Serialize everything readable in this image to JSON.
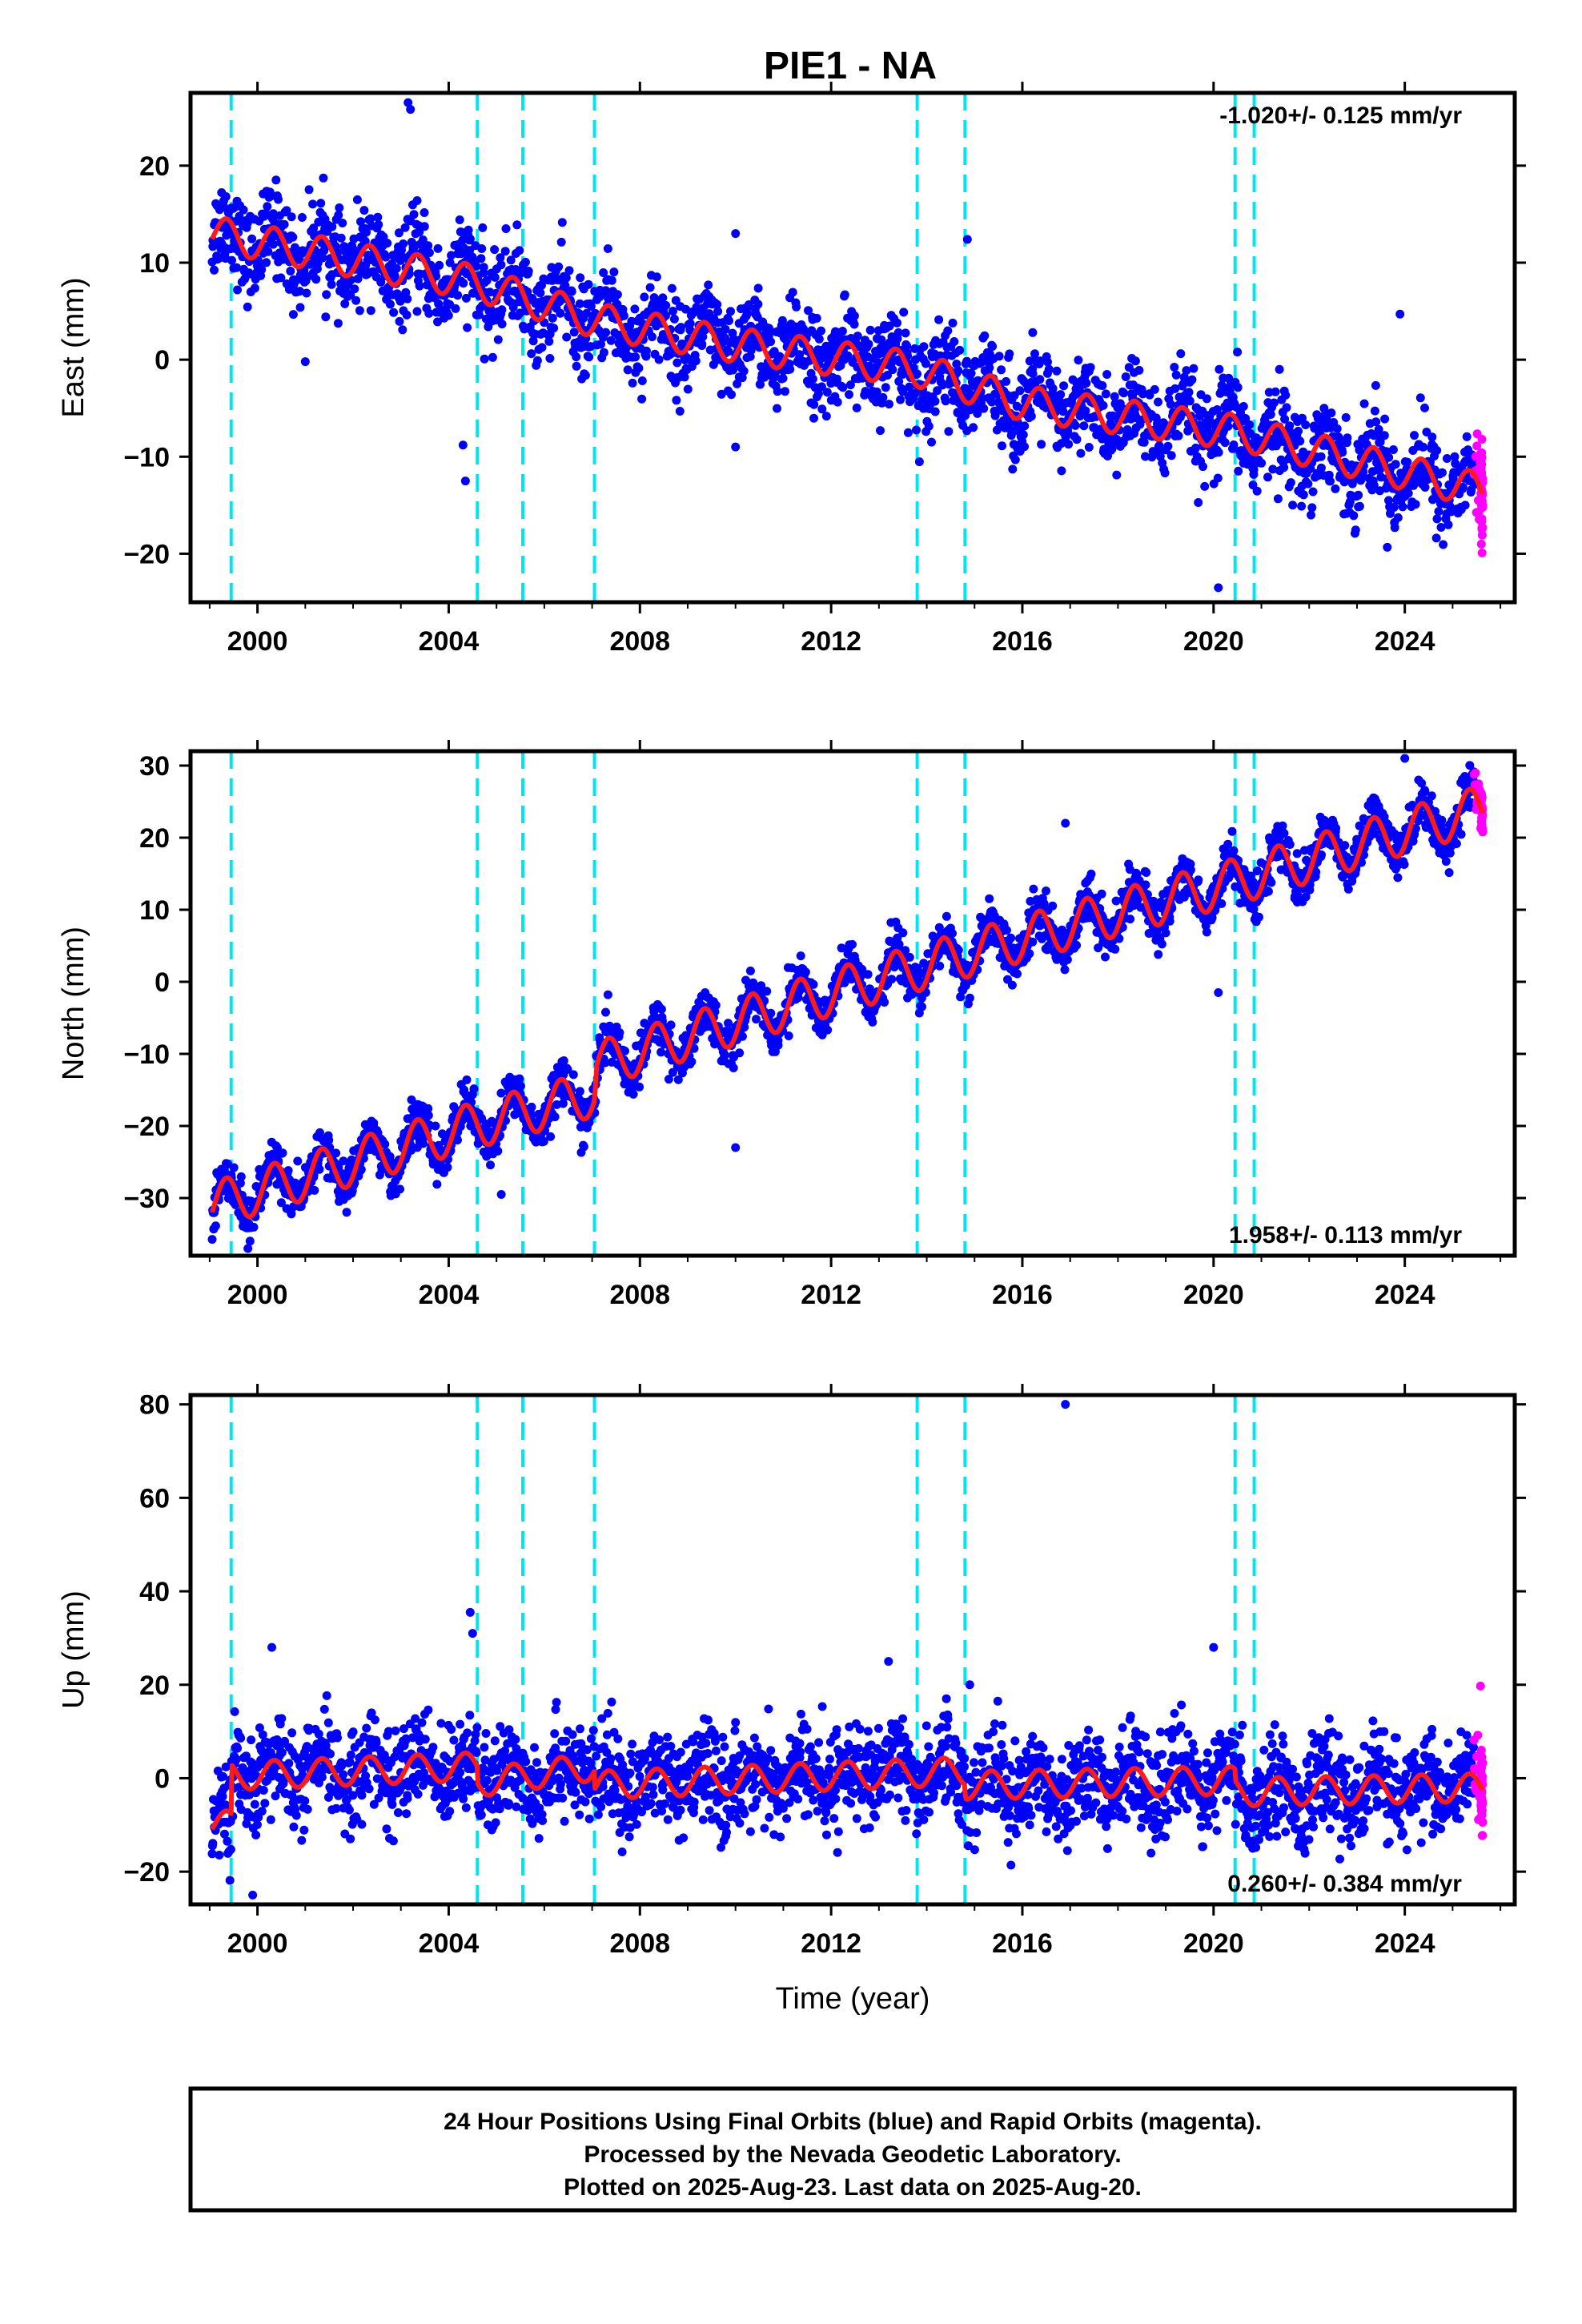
{
  "title": "PIE1 - NA",
  "colors": {
    "final": "#0000ff",
    "rapid": "#ff00ff",
    "model": "#ff1a1a",
    "offset": "#00e5f0"
  },
  "chart_data": [
    {
      "type": "scatter",
      "name": "east",
      "ylabel": "East (mm)",
      "rate_text": "-1.020+/- 0.125 mm/yr",
      "rate_position": "top-right",
      "xlim": [
        1998.6,
        2026.3
      ],
      "ylim": [
        -25,
        27.5
      ],
      "x_ticks": [
        2000,
        2004,
        2008,
        2012,
        2016,
        2020,
        2024
      ],
      "x_tick_labels": [
        "2000",
        "2004",
        "2008",
        "2012",
        "2016",
        "2020",
        "2024"
      ],
      "y_ticks": [
        -20,
        -10,
        0,
        10,
        20
      ],
      "y_tick_labels": [
        "−20",
        "−10",
        "0",
        "10",
        "20"
      ],
      "data_start": 1999.05,
      "data_end": 2025.63,
      "rapid_start": 2025.45,
      "trend_anchors": [
        [
          1999.05,
          13.0
        ],
        [
          2004.5,
          8.0
        ],
        [
          2007.1,
          4.0
        ],
        [
          2010,
          1.5
        ],
        [
          2013.8,
          -1.0
        ],
        [
          2016,
          -4.5
        ],
        [
          2020.5,
          -7.5
        ],
        [
          2025.6,
          -13.5
        ]
      ],
      "seasonal_amplitude": 1.8,
      "scatter_sd": 2.3,
      "outliers": [
        [
          2003.15,
          26.5
        ],
        [
          2003.2,
          25.8
        ],
        [
          2004.3,
          -8.8
        ],
        [
          2004.35,
          -12.5
        ],
        [
          2014.85,
          12.4
        ],
        [
          2010.0,
          13.0
        ],
        [
          2020.1,
          -23.5
        ],
        [
          2023.9,
          4.7
        ],
        [
          2001.0,
          -0.2
        ],
        [
          2014.1,
          -8.5
        ],
        [
          2010.0,
          -9.0
        ]
      ],
      "offsets": [
        1999.45,
        2004.6,
        2005.55,
        2007.05,
        2013.8,
        2014.8,
        2020.45,
        2020.85
      ]
    },
    {
      "type": "scatter",
      "name": "north",
      "ylabel": "North (mm)",
      "rate_text": "1.958+/- 0.113 mm/yr",
      "rate_position": "bottom-right",
      "xlim": [
        1998.6,
        2026.3
      ],
      "ylim": [
        -38,
        32
      ],
      "x_ticks": [
        2000,
        2004,
        2008,
        2012,
        2016,
        2020,
        2024
      ],
      "x_tick_labels": [
        "2000",
        "2004",
        "2008",
        "2012",
        "2016",
        "2020",
        "2024"
      ],
      "y_ticks": [
        -30,
        -20,
        -10,
        0,
        10,
        20,
        30
      ],
      "y_tick_labels": [
        "−30",
        "−20",
        "−10",
        "0",
        "10",
        "20",
        "30"
      ],
      "data_start": 1999.05,
      "data_end": 2025.63,
      "rapid_start": 2025.45,
      "trend_anchors": [
        [
          1999.05,
          -31.0
        ],
        [
          2004.5,
          -20.0
        ],
        [
          2007.05,
          -15.5
        ],
        [
          2007.1,
          -11.5
        ],
        [
          2012,
          -1.5
        ],
        [
          2016,
          6.0
        ],
        [
          2020.5,
          14.0
        ],
        [
          2025.6,
          24.0
        ]
      ],
      "seasonal_amplitude": 3.2,
      "scatter_sd": 1.6,
      "outliers": [
        [
          2010.0,
          -23.0
        ],
        [
          2020.1,
          -1.5
        ],
        [
          2024.0,
          31.0
        ],
        [
          2016.9,
          22.0
        ],
        [
          2005.1,
          -29.5
        ],
        [
          1999.8,
          -37.0
        ]
      ],
      "offsets": [
        1999.45,
        2004.6,
        2005.55,
        2007.05,
        2013.8,
        2014.8,
        2020.45,
        2020.85
      ]
    },
    {
      "type": "scatter",
      "name": "up",
      "ylabel": "Up (mm)",
      "xlabel": "Time (year)",
      "rate_text": "0.260+/- 0.384 mm/yr",
      "rate_position": "bottom-right",
      "xlim": [
        1998.6,
        2026.3
      ],
      "ylim": [
        -27,
        82
      ],
      "x_ticks": [
        2000,
        2004,
        2008,
        2012,
        2016,
        2020,
        2024
      ],
      "x_tick_labels": [
        "2000",
        "2004",
        "2008",
        "2012",
        "2016",
        "2020",
        "2024"
      ],
      "y_ticks": [
        -20,
        0,
        20,
        40,
        60,
        80
      ],
      "y_tick_labels": [
        "−20",
        "0",
        "20",
        "40",
        "60",
        "80"
      ],
      "data_start": 1999.05,
      "data_end": 2025.63,
      "rapid_start": 2025.45,
      "trend_anchors": [
        [
          1999.05,
          -10.0
        ],
        [
          1999.45,
          -10.0
        ],
        [
          1999.46,
          0.5
        ],
        [
          2004.6,
          2.5
        ],
        [
          2004.61,
          -1.0
        ],
        [
          2007.05,
          2.5
        ],
        [
          2007.06,
          -1.5
        ],
        [
          2014.8,
          1.5
        ],
        [
          2014.81,
          -1.5
        ],
        [
          2020.45,
          -0.5
        ],
        [
          2020.46,
          -3.0
        ],
        [
          2025.6,
          -2.0
        ]
      ],
      "seasonal_amplitude": 3.0,
      "scatter_sd": 5.0,
      "outliers": [
        [
          2016.9,
          80.0
        ],
        [
          2004.45,
          35.5
        ],
        [
          2004.5,
          31.0
        ],
        [
          2020.0,
          28.0
        ],
        [
          2000.3,
          28.0
        ],
        [
          2013.2,
          25.0
        ],
        [
          1999.9,
          -25.0
        ],
        [
          2014.9,
          20.0
        ]
      ],
      "offsets": [
        1999.45,
        2004.6,
        2005.55,
        2007.05,
        2013.8,
        2014.8,
        2020.45,
        2020.85
      ]
    }
  ],
  "footer": {
    "line1": "24 Hour Positions Using Final Orbits (blue) and Rapid Orbits (magenta).",
    "line2": "Processed by the Nevada Geodetic Laboratory.",
    "line3": "Plotted on 2025-Aug-23. Last data on 2025-Aug-20."
  }
}
